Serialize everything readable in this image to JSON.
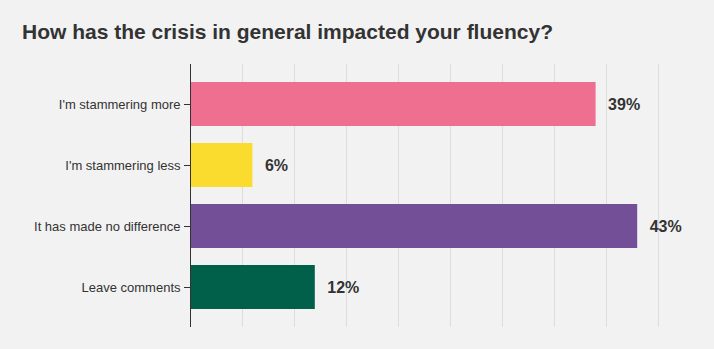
{
  "chart_data": {
    "type": "bar",
    "orientation": "horizontal",
    "title": "How has the crisis in general impacted your fluency?",
    "categories": [
      "I'm stammering more",
      "I'm stammering less",
      "It has made no difference",
      "Leave comments"
    ],
    "values": [
      39,
      6,
      43,
      12
    ],
    "value_labels": [
      "39%",
      "6%",
      "43%",
      "12%"
    ],
    "colors": [
      "#ee6f8f",
      "#f9dc2e",
      "#724f96",
      "#00604a"
    ],
    "xlim": [
      0,
      45
    ],
    "xticks": [
      0,
      5,
      10,
      15,
      20,
      25,
      30,
      35,
      40,
      45
    ],
    "grid": true,
    "data_labels": true,
    "tick_labels": "y"
  }
}
